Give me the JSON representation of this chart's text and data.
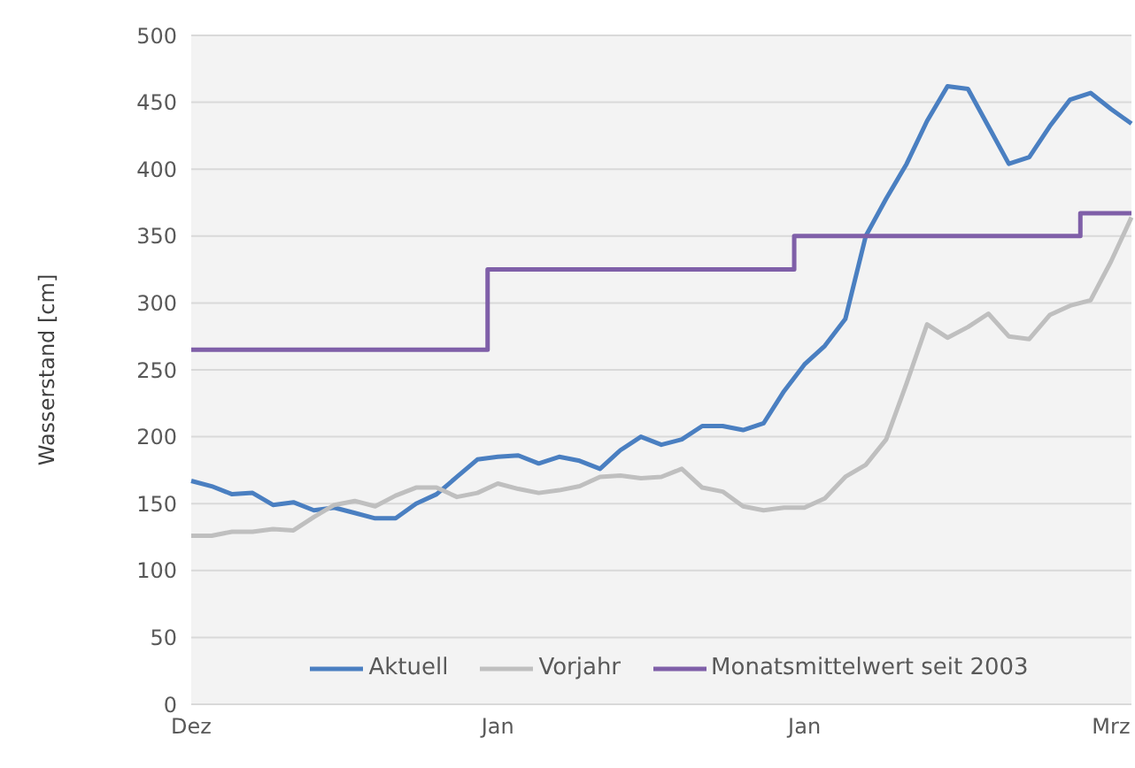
{
  "chart_data": {
    "type": "line",
    "ylabel": "Wasserstand [cm]",
    "categories": [
      "Dez",
      null,
      null,
      null,
      null,
      null,
      null,
      null,
      null,
      null,
      null,
      null,
      null,
      null,
      null,
      "Jan",
      null,
      null,
      null,
      null,
      null,
      null,
      null,
      null,
      null,
      null,
      null,
      null,
      null,
      null,
      "Jan",
      null,
      null,
      null,
      null,
      null,
      null,
      null,
      null,
      null,
      null,
      null,
      null,
      null,
      null,
      "Mrz",
      null
    ],
    "ylim": [
      0,
      500
    ],
    "yticks": [
      0,
      50,
      100,
      150,
      200,
      250,
      300,
      350,
      400,
      450,
      500
    ],
    "grid": "y",
    "legend": "bottom",
    "marker": "none",
    "line_style": "solid",
    "series": [
      {
        "name": "Aktuell",
        "color": "#4a7fc1",
        "values": [
          167,
          163,
          157,
          158,
          149,
          151,
          145,
          147,
          143,
          139,
          139,
          150,
          157,
          170,
          183,
          185,
          186,
          180,
          185,
          182,
          176,
          190,
          200,
          194,
          198,
          208,
          208,
          205,
          210,
          234,
          254,
          268,
          288,
          350,
          378,
          404,
          436,
          462,
          460,
          432,
          404,
          409,
          432,
          452,
          457,
          445,
          434
        ]
      },
      {
        "name": "Vorjahr",
        "color": "#bfbfbf",
        "values": [
          126,
          126,
          129,
          129,
          131,
          130,
          140,
          149,
          152,
          148,
          156,
          162,
          162,
          155,
          158,
          165,
          161,
          158,
          160,
          163,
          170,
          171,
          169,
          170,
          176,
          162,
          159,
          148,
          145,
          147,
          147,
          154,
          170,
          179,
          198,
          240,
          284,
          274,
          282,
          292,
          275,
          273,
          291,
          298,
          302,
          331,
          364
        ]
      },
      {
        "name": "Monatsmittelwert seit 2003",
        "color": "#7f5fa8",
        "type": "step",
        "values": [
          265,
          265,
          265,
          265,
          265,
          265,
          265,
          265,
          265,
          265,
          265,
          265,
          265,
          265,
          265,
          325,
          325,
          325,
          325,
          325,
          325,
          325,
          325,
          325,
          325,
          325,
          325,
          325,
          325,
          325,
          350,
          350,
          350,
          350,
          350,
          350,
          350,
          350,
          350,
          350,
          350,
          350,
          350,
          350,
          367,
          367,
          367
        ]
      }
    ]
  }
}
